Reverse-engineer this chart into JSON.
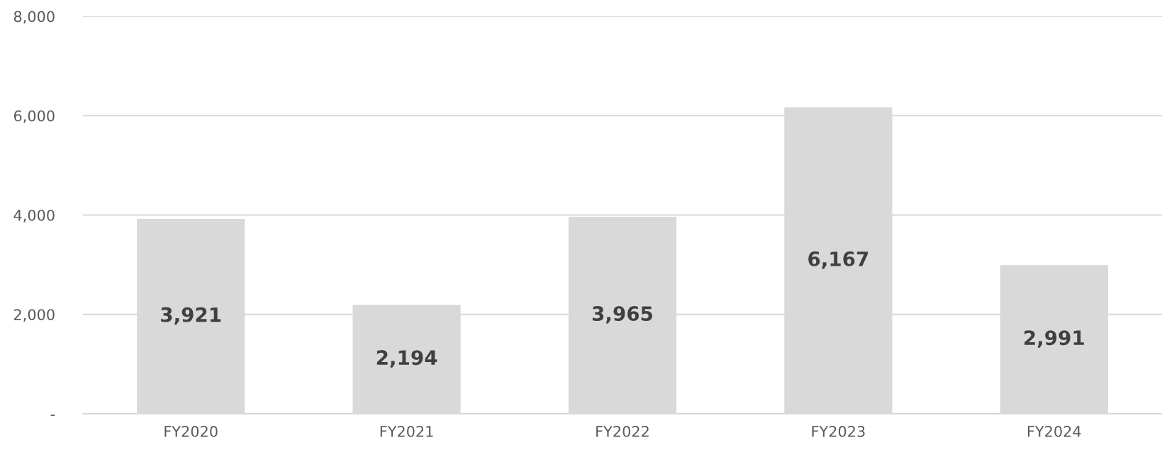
{
  "chart_data": {
    "type": "bar",
    "categories": [
      "FY2020",
      "FY2021",
      "FY2022",
      "FY2023",
      "FY2024"
    ],
    "values": [
      3921,
      2194,
      3965,
      6167,
      2991
    ],
    "value_labels": [
      "3,921",
      "2,194",
      "3,965",
      "6,167",
      "2,991"
    ],
    "color": "#d9d9d9",
    "ylim": [
      0,
      8000
    ],
    "yticks": [
      {
        "value": 0,
        "label": "-"
      },
      {
        "value": 2000,
        "label": "2,000"
      },
      {
        "value": 4000,
        "label": "4,000"
      },
      {
        "value": 6000,
        "label": "6,000"
      },
      {
        "value": 8000,
        "label": "8,000"
      }
    ],
    "grid": "y"
  }
}
